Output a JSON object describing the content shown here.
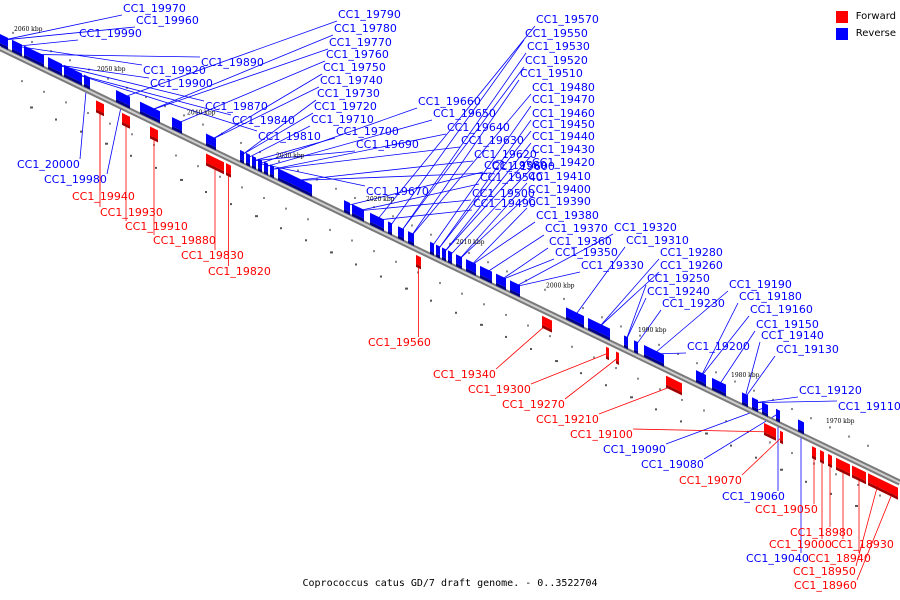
{
  "legend": {
    "forward": {
      "label": "Forward",
      "color": "#ff0000"
    },
    "reverse": {
      "label": "Reverse",
      "color": "#0000ff"
    }
  },
  "caption": "Coprococcus catus GD/7 draft genome. - 0..3522704",
  "ticks": [
    "2060 kbp",
    "2050 kbp",
    "2040 kbp",
    "2030 kbp",
    "2020 kbp",
    "2010 kbp",
    "2000 kbp",
    "1990 kbp",
    "1980 kbp",
    "1970 kbp"
  ],
  "reverse_genes": [
    "CC1_19970",
    "CC1_19960",
    "CC1_19990",
    "CC1_19920",
    "CC1_19890",
    "CC1_19900",
    "CC1_19870",
    "CC1_19840",
    "CC1_19810",
    "CC1_20000",
    "CC1_19980",
    "CC1_19790",
    "CC1_19780",
    "CC1_19770",
    "CC1_19760",
    "CC1_19750",
    "CC1_19740",
    "CC1_19730",
    "CC1_19720",
    "CC1_19710",
    "CC1_19700",
    "CC1_19690",
    "CC1_19670",
    "CC1_19660",
    "CC1_19650",
    "CC1_19640",
    "CC1_19630",
    "CC1_19620",
    "CC1_19600",
    "CC1_19580",
    "CC1_19540",
    "CC1_19500",
    "CC1_19490",
    "CC1_19570",
    "CC1_19550",
    "CC1_19530",
    "CC1_19520",
    "CC1_19510",
    "CC1_19480",
    "CC1_19470",
    "CC1_19460",
    "CC1_19450",
    "CC1_19440",
    "CC1_19430",
    "CC1_19420",
    "CC1_19410",
    "CC1_19400",
    "CC1_19390",
    "CC1_19380",
    "CC1_19370",
    "CC1_19360",
    "CC1_19350",
    "CC1_19330",
    "CC1_19320",
    "CC1_19310",
    "CC1_19280",
    "CC1_19260",
    "CC1_19250",
    "CC1_19240",
    "CC1_19230",
    "CC1_19200",
    "CC1_19190",
    "CC1_19180",
    "CC1_19160",
    "CC1_19150",
    "CC1_19140",
    "CC1_19130",
    "CC1_19120",
    "CC1_19110",
    "CC1_19090",
    "CC1_19080",
    "CC1_19060",
    "CC1_19040"
  ],
  "forward_genes": [
    "CC1_19940",
    "CC1_19930",
    "CC1_19910",
    "CC1_19880",
    "CC1_19830",
    "CC1_19820",
    "CC1_19560",
    "CC1_19340",
    "CC1_19300",
    "CC1_19270",
    "CC1_19210",
    "CC1_19100",
    "CC1_19070",
    "CC1_19050",
    "CC1_19000",
    "CC1_18980",
    "CC1_18930",
    "CC1_18940",
    "CC1_18950",
    "CC1_18960"
  ]
}
